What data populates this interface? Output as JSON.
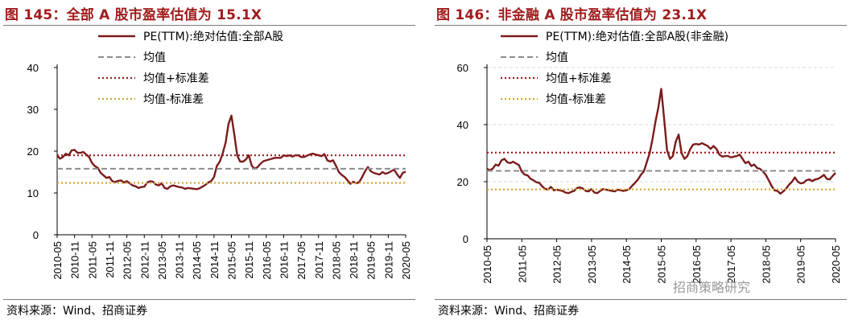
{
  "colors": {
    "title": "#a11c1c",
    "pe_line": "#7b1b1b",
    "mean_line": "#8c8c8c",
    "plus_std_line": "#9b1c1c",
    "minus_std_line": "#d6a534",
    "grid": "#d9d9d9"
  },
  "watermark": "招商策略研究",
  "chart_data": [
    {
      "type": "line",
      "title": "图 145：全部 A 股市盈率估值为 15.1X",
      "source": "资料来源：Wind、招商证券",
      "ylim": [
        0,
        40
      ],
      "yticks": [
        "0",
        "10",
        "20",
        "30",
        "40"
      ],
      "grid": false,
      "legend": "top",
      "x_range": [
        "2010-05",
        "2020-05"
      ],
      "xticks": [
        "2010-05",
        "2010-11",
        "2011-05",
        "2011-11",
        "2012-05",
        "2012-11",
        "2013-05",
        "2013-11",
        "2014-05",
        "2014-11",
        "2015-05",
        "2015-11",
        "2016-05",
        "2016-11",
        "2017-05",
        "2017-11",
        "2018-05",
        "2018-11",
        "2019-05",
        "2019-11",
        "2020-05"
      ],
      "series": [
        {
          "name": "PE(TTM):绝对估值:全部A股",
          "style": "solid",
          "x": [
            "2010-05",
            "2010-06",
            "2010-07",
            "2010-08",
            "2010-09",
            "2010-10",
            "2010-11",
            "2010-12",
            "2011-01",
            "2011-02",
            "2011-03",
            "2011-04",
            "2011-05",
            "2011-06",
            "2011-07",
            "2011-08",
            "2011-09",
            "2011-10",
            "2011-11",
            "2011-12",
            "2012-01",
            "2012-02",
            "2012-03",
            "2012-04",
            "2012-05",
            "2012-06",
            "2012-07",
            "2012-08",
            "2012-09",
            "2012-10",
            "2012-11",
            "2012-12",
            "2013-01",
            "2013-02",
            "2013-03",
            "2013-04",
            "2013-05",
            "2013-06",
            "2013-07",
            "2013-08",
            "2013-09",
            "2013-10",
            "2013-11",
            "2013-12",
            "2014-01",
            "2014-02",
            "2014-03",
            "2014-04",
            "2014-05",
            "2014-06",
            "2014-07",
            "2014-08",
            "2014-09",
            "2014-10",
            "2014-11",
            "2014-12",
            "2015-01",
            "2015-02",
            "2015-03",
            "2015-04",
            "2015-05",
            "2015-06",
            "2015-07",
            "2015-08",
            "2015-09",
            "2015-10",
            "2015-11",
            "2015-12",
            "2016-01",
            "2016-02",
            "2016-03",
            "2016-04",
            "2016-05",
            "2016-06",
            "2016-07",
            "2016-08",
            "2016-09",
            "2016-10",
            "2016-11",
            "2016-12",
            "2017-01",
            "2017-02",
            "2017-03",
            "2017-04",
            "2017-05",
            "2017-06",
            "2017-07",
            "2017-08",
            "2017-09",
            "2017-10",
            "2017-11",
            "2017-12",
            "2018-01",
            "2018-02",
            "2018-03",
            "2018-04",
            "2018-05",
            "2018-06",
            "2018-07",
            "2018-08",
            "2018-09",
            "2018-10",
            "2018-11",
            "2018-12",
            "2019-01",
            "2019-02",
            "2019-03",
            "2019-04",
            "2019-05",
            "2019-06",
            "2019-07",
            "2019-08",
            "2019-09",
            "2019-10",
            "2019-11",
            "2019-12",
            "2020-01",
            "2020-02",
            "2020-03",
            "2020-04",
            "2020-05"
          ],
          "values": [
            19.0,
            18.2,
            18.6,
            19.4,
            19.0,
            20.2,
            20.3,
            19.6,
            19.6,
            19.8,
            19.2,
            18.6,
            17.2,
            16.4,
            16.0,
            14.8,
            14.2,
            13.6,
            13.8,
            12.8,
            12.6,
            12.9,
            13.0,
            12.5,
            12.8,
            12.3,
            11.8,
            11.6,
            11.2,
            11.4,
            11.5,
            12.5,
            12.8,
            12.7,
            12.0,
            11.8,
            12.3,
            11.2,
            11.0,
            11.6,
            11.8,
            11.6,
            11.4,
            11.3,
            11.0,
            11.2,
            11.1,
            11.0,
            10.9,
            11.1,
            11.5,
            11.9,
            12.5,
            12.8,
            13.8,
            16.5,
            17.5,
            19.5,
            22.0,
            26.5,
            28.5,
            24.0,
            19.0,
            17.5,
            17.5,
            18.0,
            19.0,
            16.5,
            15.8,
            16.2,
            17.0,
            17.6,
            17.8,
            18.0,
            18.2,
            18.4,
            18.4,
            18.4,
            19.0,
            18.8,
            19.0,
            18.7,
            19.0,
            19.0,
            18.6,
            18.6,
            18.9,
            19.2,
            19.4,
            19.2,
            19.0,
            18.8,
            19.3,
            17.8,
            17.5,
            17.8,
            16.5,
            15.0,
            14.3,
            13.8,
            13.0,
            12.2,
            12.7,
            12.3,
            12.6,
            13.8,
            15.2,
            16.2,
            15.2,
            14.8,
            14.6,
            14.4,
            15.0,
            14.6,
            14.8,
            15.2,
            15.6,
            14.5,
            13.6,
            14.8,
            15.1
          ]
        },
        {
          "name": "均值",
          "style": "dashed",
          "values": [
            15.8
          ]
        },
        {
          "name": "均值+标准差",
          "style": "dotted",
          "values": [
            19.0
          ]
        },
        {
          "name": "均值-标准差",
          "style": "dotted",
          "values": [
            12.4
          ]
        }
      ]
    },
    {
      "type": "line",
      "title": "图 146：非金融 A 股市盈率估值为 23.1X",
      "source": "资料来源：Wind、招商证券",
      "ylim": [
        0,
        60
      ],
      "yticks": [
        "0",
        "20",
        "40",
        "60"
      ],
      "grid": true,
      "legend": "top",
      "x_range": [
        "2010-05",
        "2020-05"
      ],
      "xticks": [
        "2010-05",
        "2011-05",
        "2012-05",
        "2013-05",
        "2014-05",
        "2015-05",
        "2016-05",
        "2017-05",
        "2018-05",
        "2019-05",
        "2020-05"
      ],
      "series": [
        {
          "name": "PE(TTM):绝对估值:全部A股(非金融)",
          "style": "solid",
          "x": [
            "2010-05",
            "2010-06",
            "2010-07",
            "2010-08",
            "2010-09",
            "2010-10",
            "2010-11",
            "2010-12",
            "2011-01",
            "2011-02",
            "2011-03",
            "2011-04",
            "2011-05",
            "2011-06",
            "2011-07",
            "2011-08",
            "2011-09",
            "2011-10",
            "2011-11",
            "2011-12",
            "2012-01",
            "2012-02",
            "2012-03",
            "2012-04",
            "2012-05",
            "2012-06",
            "2012-07",
            "2012-08",
            "2012-09",
            "2012-10",
            "2012-11",
            "2012-12",
            "2013-01",
            "2013-02",
            "2013-03",
            "2013-04",
            "2013-05",
            "2013-06",
            "2013-07",
            "2013-08",
            "2013-09",
            "2013-10",
            "2013-11",
            "2013-12",
            "2014-01",
            "2014-02",
            "2014-03",
            "2014-04",
            "2014-05",
            "2014-06",
            "2014-07",
            "2014-08",
            "2014-09",
            "2014-10",
            "2014-11",
            "2014-12",
            "2015-01",
            "2015-02",
            "2015-03",
            "2015-04",
            "2015-05",
            "2015-06",
            "2015-07",
            "2015-08",
            "2015-09",
            "2015-10",
            "2015-11",
            "2015-12",
            "2016-01",
            "2016-02",
            "2016-03",
            "2016-04",
            "2016-05",
            "2016-06",
            "2016-07",
            "2016-08",
            "2016-09",
            "2016-10",
            "2016-11",
            "2016-12",
            "2017-01",
            "2017-02",
            "2017-03",
            "2017-04",
            "2017-05",
            "2017-06",
            "2017-07",
            "2017-08",
            "2017-09",
            "2017-10",
            "2017-11",
            "2017-12",
            "2018-01",
            "2018-02",
            "2018-03",
            "2018-04",
            "2018-05",
            "2018-06",
            "2018-07",
            "2018-08",
            "2018-09",
            "2018-10",
            "2018-11",
            "2018-12",
            "2019-01",
            "2019-02",
            "2019-03",
            "2019-04",
            "2019-05",
            "2019-06",
            "2019-07",
            "2019-08",
            "2019-09",
            "2019-10",
            "2019-11",
            "2019-12",
            "2020-01",
            "2020-02",
            "2020-03",
            "2020-04",
            "2020-05"
          ],
          "values": [
            24.5,
            24.0,
            24.6,
            26.0,
            25.6,
            27.5,
            28.0,
            26.8,
            26.5,
            27.0,
            26.4,
            25.8,
            23.5,
            22.5,
            22.2,
            21.0,
            20.5,
            19.8,
            19.6,
            18.4,
            17.5,
            17.2,
            18.2,
            17.0,
            17.2,
            17.0,
            16.8,
            16.2,
            16.0,
            16.4,
            16.8,
            17.8,
            18.0,
            17.6,
            16.8,
            16.6,
            17.4,
            16.2,
            16.0,
            16.8,
            17.4,
            17.2,
            17.0,
            16.8,
            16.6,
            17.2,
            17.0,
            16.8,
            17.0,
            17.4,
            18.6,
            19.6,
            20.8,
            22.4,
            23.6,
            26.8,
            30.0,
            35.0,
            41.0,
            46.0,
            52.5,
            42.0,
            31.0,
            28.0,
            29.0,
            34.0,
            36.5,
            30.0,
            28.0,
            29.0,
            31.5,
            33.0,
            33.2,
            33.0,
            33.5,
            33.0,
            32.5,
            31.5,
            32.5,
            31.5,
            29.5,
            28.8,
            29.0,
            29.0,
            28.5,
            28.8,
            29.0,
            29.5,
            28.0,
            26.5,
            27.0,
            25.5,
            26.0,
            24.8,
            24.5,
            23.6,
            22.4,
            20.5,
            18.5,
            17.0,
            16.8,
            15.8,
            16.6,
            17.6,
            19.0,
            20.0,
            21.5,
            20.0,
            19.4,
            19.6,
            20.5,
            20.8,
            20.2,
            20.8,
            21.0,
            21.6,
            22.4,
            21.0,
            20.8,
            22.0,
            23.1
          ]
        },
        {
          "name": "均值",
          "style": "dashed",
          "values": [
            23.8
          ]
        },
        {
          "name": "均值+标准差",
          "style": "dotted",
          "values": [
            30.2
          ]
        },
        {
          "name": "均值-标准差",
          "style": "dotted",
          "values": [
            17.3
          ]
        }
      ]
    }
  ]
}
